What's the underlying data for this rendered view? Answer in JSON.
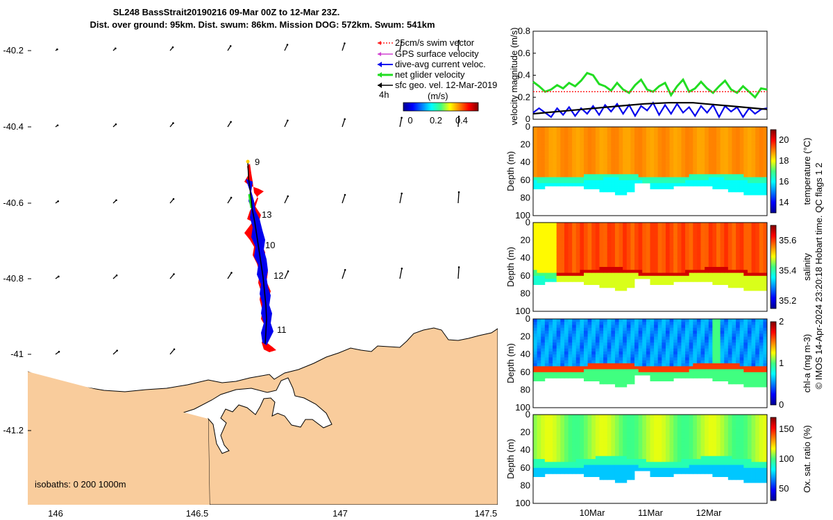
{
  "header": {
    "line1": "SL248 BassStrait20190216 09-Mar 00Z to 12-Mar 23Z.",
    "line2": "Dist. over ground: 95km. Dist. swum: 86km. Mission DOG: 572km. Swum: 541km"
  },
  "colors": {
    "land": "#f9cc9c",
    "track_red": "#ff0000",
    "track_blue": "#0000ee",
    "net_green": "#22dd22",
    "gps_magenta": "#d040d0",
    "sfc_black": "#000000",
    "swim_red_dotted": "#ff2020"
  },
  "map": {
    "legend": {
      "items": [
        {
          "label": "25cm/s swim vector",
          "color": "#ff2020"
        },
        {
          "label": "GPS surface velocity",
          "color": "#d040d0"
        },
        {
          "label": "dive-avg current veloc.",
          "color": "#0000ee"
        },
        {
          "label": "net glider velocity",
          "color": "#22dd22"
        },
        {
          "label": "sfc geo. vel. 12-Mar-2019",
          "color": "#000000"
        }
      ],
      "time_label": "4h",
      "colorbar_label": "(m/s)",
      "colorbar_ticks": [
        "0",
        "0.2",
        "0.4"
      ]
    },
    "isobaths_text": "isobaths: 0   200  1000m",
    "track_day_labels": [
      "9",
      "13",
      "10",
      "12",
      "11"
    ]
  },
  "chart_data": [
    {
      "type": "map",
      "title": "SL248 BassStrait20190216 09-Mar 00Z to 12-Mar 23Z.",
      "xlim": [
        145.88,
        147.53
      ],
      "ylim": [
        -41.4,
        -40.14
      ],
      "x_ticks": [
        "146",
        "146.5",
        "147",
        "147.5"
      ],
      "y_ticks": [
        "-40.2",
        "-40.4",
        "-40.6",
        "-40.8",
        "-41",
        "-41.2"
      ],
      "track_labels": [
        {
          "label": "9",
          "lon": 146.69,
          "lat": -40.5
        },
        {
          "label": "13",
          "lon": 146.71,
          "lat": -40.63
        },
        {
          "label": "10",
          "lon": 146.73,
          "lat": -40.72
        },
        {
          "label": "12",
          "lon": 146.76,
          "lat": -40.8
        },
        {
          "label": "11",
          "lon": 146.77,
          "lat": -40.94
        }
      ]
    },
    {
      "type": "line",
      "ylabel": "velocity magnitude (m/s)",
      "ylim": [
        0,
        0.8
      ],
      "y_ticks": [
        "0",
        "0.2",
        "0.4",
        "0.6",
        "0.8"
      ],
      "xlim": [
        9.0,
        13.0
      ],
      "series": [
        {
          "color": "#22dd22",
          "values": [
            0.34,
            0.3,
            0.25,
            0.27,
            0.31,
            0.28,
            0.33,
            0.3,
            0.35,
            0.42,
            0.4,
            0.32,
            0.3,
            0.26,
            0.33,
            0.27,
            0.24,
            0.31,
            0.36,
            0.27,
            0.25,
            0.3,
            0.33,
            0.22,
            0.3,
            0.36,
            0.25,
            0.28,
            0.34,
            0.28,
            0.24,
            0.3,
            0.35,
            0.27,
            0.24,
            0.3,
            0.25,
            0.2,
            0.28,
            0.27
          ]
        },
        {
          "color": "#0000ee",
          "values": [
            0.06,
            0.1,
            0.06,
            0.02,
            0.1,
            0.04,
            0.11,
            0.03,
            0.1,
            0.05,
            0.12,
            0.04,
            0.13,
            0.07,
            0.14,
            0.05,
            0.13,
            0.03,
            0.12,
            0.08,
            0.15,
            0.04,
            0.13,
            0.05,
            0.14,
            0.06,
            0.11,
            0.03,
            0.12,
            0.06,
            0.13,
            0.02,
            0.12,
            0.07,
            0.11,
            0.02,
            0.1,
            0.05,
            0.09,
            0.1
          ]
        },
        {
          "color": "#000000",
          "values": [
            0.05,
            0.06,
            0.07,
            0.08,
            0.09,
            0.1,
            0.11,
            0.12,
            0.13,
            0.14,
            0.145,
            0.15,
            0.15,
            0.15,
            0.14,
            0.13,
            0.12,
            0.11,
            0.1,
            0.09
          ]
        },
        {
          "color": "#ff2020",
          "values": [
            0.25,
            0.25
          ]
        }
      ]
    },
    {
      "type": "heatmap",
      "ylabel": "Depth (m)",
      "clabel": "temperature (°C)",
      "y_ticks": [
        "0",
        "20",
        "40",
        "60",
        "80",
        "100"
      ],
      "c_ticks": [
        "14",
        "16",
        "18",
        "20"
      ],
      "clim": [
        13,
        21
      ]
    },
    {
      "type": "heatmap",
      "ylabel": "Depth (m)",
      "clabel": "salinity",
      "y_ticks": [
        "0",
        "20",
        "40",
        "60",
        "80",
        "100"
      ],
      "c_ticks": [
        "35.2",
        "35.4",
        "35.6"
      ],
      "clim": [
        35.15,
        35.7
      ]
    },
    {
      "type": "heatmap",
      "ylabel": "Depth (m)",
      "clabel": "chl-a (mg m-3)",
      "y_ticks": [
        "0",
        "20",
        "40",
        "60",
        "80",
        "100"
      ],
      "c_ticks": [
        "0",
        "1",
        "2"
      ],
      "clim": [
        0,
        2
      ]
    },
    {
      "type": "heatmap",
      "ylabel": "Depth (m)",
      "clabel": "Ox. sat. ratio (%)",
      "y_ticks": [
        "0",
        "20",
        "40",
        "60",
        "80",
        "100"
      ],
      "c_ticks": [
        "50",
        "100",
        "150"
      ],
      "clim": [
        30,
        170
      ],
      "x_ticks": [
        "10Mar",
        "11Mar",
        "12Mar"
      ]
    }
  ],
  "credit": {
    "text": "© IMOS 14-Apr-2024 23:20:18 Hobart time. QC flags 1  2"
  }
}
